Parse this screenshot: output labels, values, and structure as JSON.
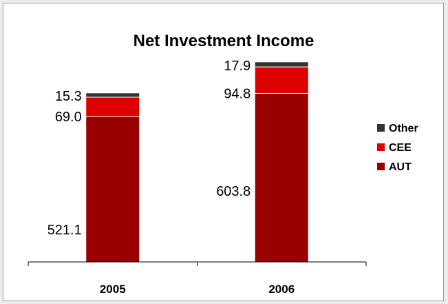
{
  "chart_data": {
    "type": "bar",
    "stacked": true,
    "title": "Net Investment Income",
    "xlabel": "",
    "ylabel": "",
    "categories": [
      "2005",
      "2006"
    ],
    "series": [
      {
        "name": "AUT",
        "values": [
          521.1,
          603.8
        ],
        "labels": [
          "521.1",
          "603.8"
        ],
        "color": "#990000"
      },
      {
        "name": "CEE",
        "values": [
          69.0,
          94.8
        ],
        "labels": [
          "69.0",
          "94.8"
        ],
        "color": "#dd0000"
      },
      {
        "name": "Other",
        "values": [
          15.3,
          17.9
        ],
        "labels": [
          "15.3",
          "17.9"
        ],
        "color": "#333333"
      }
    ],
    "ylim": [
      0,
      716
    ],
    "grid": false,
    "legend_position": "right",
    "legend_order": [
      "Other",
      "CEE",
      "AUT"
    ]
  }
}
